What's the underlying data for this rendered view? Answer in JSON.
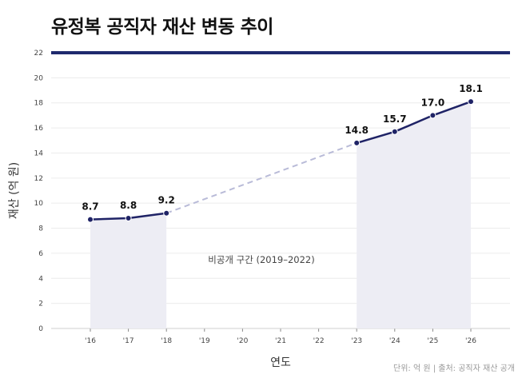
{
  "title": "유정복 공직자 재산 변동 추이",
  "source_note": "단위: 억 원  |  출처: 공직자 재산 공개",
  "chart_data": {
    "type": "line",
    "title": "유정복 공직자 재산 변동 추이",
    "xlabel": "연도",
    "ylabel": "재산 (억 원)",
    "ylim": [
      0,
      22
    ],
    "yticks": [
      0,
      2,
      4,
      6,
      8,
      10,
      12,
      14,
      16,
      18,
      20,
      22
    ],
    "categories": [
      "'16",
      "'17",
      "'18",
      "'19",
      "'20",
      "'21",
      "'22",
      "'23",
      "'24",
      "'25",
      "'26"
    ],
    "series": [
      {
        "values": [
          8.7,
          8.8,
          9.2,
          null,
          null,
          null,
          null,
          14.8,
          15.7,
          17.0,
          18.1
        ],
        "labels": [
          "8.7",
          "8.8",
          "9.2",
          "",
          "",
          "",
          "",
          "14.8",
          "15.7",
          "17.0",
          "18.1"
        ]
      }
    ],
    "annotation": "비공개 구간 (2019–2022)",
    "grid": true,
    "colors": {
      "line": "#1f2366",
      "gap_line": "#b9bbd8",
      "fill": "#ededf4",
      "grid": "#ececec",
      "rule": "#1f2a6e"
    }
  }
}
